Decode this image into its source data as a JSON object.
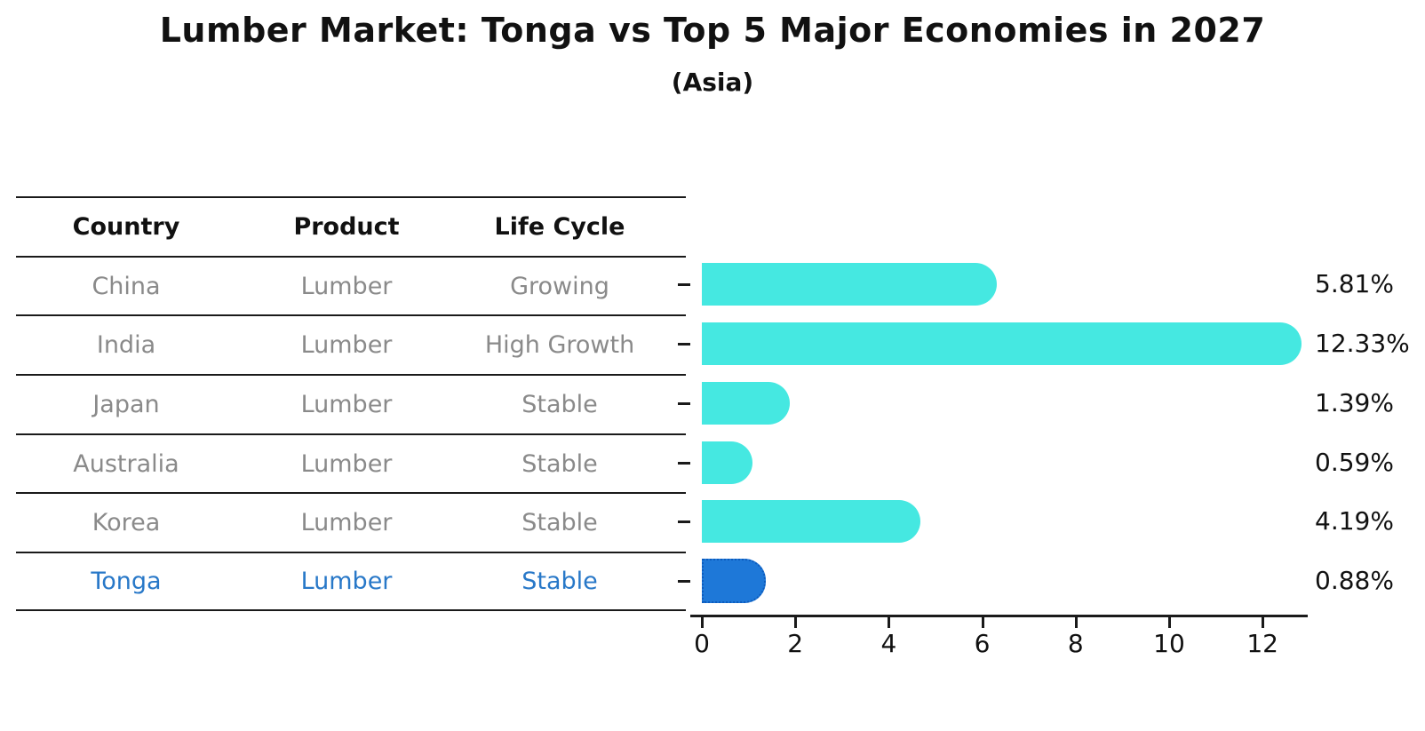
{
  "title": "Lumber Market: Tonga vs Top 5 Major Economies in 2027",
  "subtitle": "(Asia)",
  "table": {
    "headers": [
      "Country",
      "Product",
      "Life Cycle"
    ],
    "rows": [
      {
        "country": "China",
        "product": "Lumber",
        "life_cycle": "Growing",
        "highlight": false
      },
      {
        "country": "India",
        "product": "Lumber",
        "life_cycle": "High Growth",
        "highlight": false
      },
      {
        "country": "Japan",
        "product": "Lumber",
        "life_cycle": "Stable",
        "highlight": false
      },
      {
        "country": "Australia",
        "product": "Lumber",
        "life_cycle": "Stable",
        "highlight": false
      },
      {
        "country": "Korea",
        "product": "Lumber",
        "life_cycle": "Stable",
        "highlight": false
      },
      {
        "country": "Tonga",
        "product": "Lumber",
        "life_cycle": "Stable",
        "highlight": true
      }
    ]
  },
  "chart_data": {
    "type": "bar",
    "orientation": "horizontal",
    "title": "Lumber Market: Tonga vs Top 5 Major Economies in 2027",
    "subtitle": "(Asia)",
    "categories": [
      "China",
      "India",
      "Japan",
      "Australia",
      "Korea",
      "Tonga"
    ],
    "values": [
      5.81,
      12.33,
      1.39,
      0.59,
      4.19,
      0.88
    ],
    "value_labels": [
      "5.81%",
      "12.33%",
      "1.39%",
      "0.59%",
      "4.19%",
      "0.88%"
    ],
    "x_ticks": [
      0,
      2,
      4,
      6,
      8,
      10,
      12
    ],
    "xlim": [
      0,
      13
    ],
    "grid": false,
    "legend": "none",
    "highlight_index": 5
  },
  "colors": {
    "bar": "#45E8E1",
    "highlight_bar": "#1E78D8",
    "highlight_bar_border": "#0D5BBD",
    "highlight_text": "#2878C8",
    "table_text": "#8A8A8A",
    "axis": "#1A1A1A"
  }
}
